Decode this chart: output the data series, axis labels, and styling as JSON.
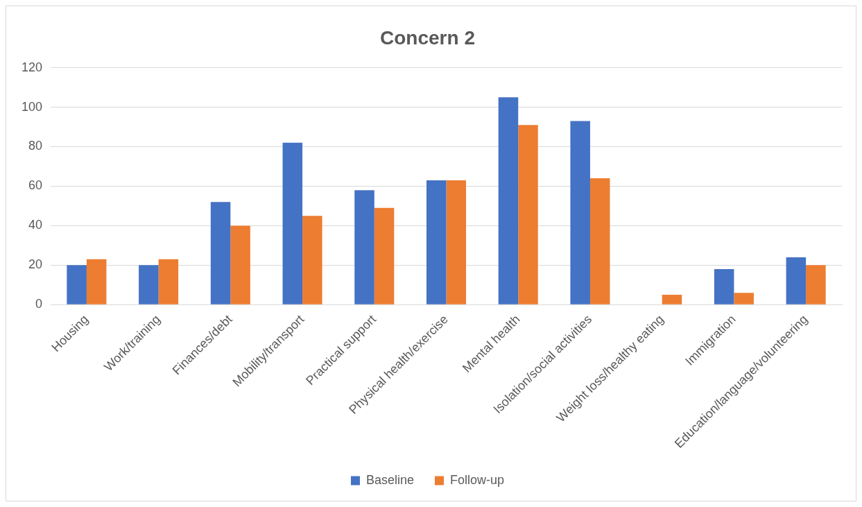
{
  "chart_data": {
    "type": "bar",
    "title": "Concern 2",
    "categories": [
      "Housing",
      "Work/training",
      "Finances/debt",
      "Mobility/transport",
      "Practical support",
      "Physical health/exercise",
      "Mental health",
      "Isolation/social activities",
      "Weight loss/healthy eating",
      "Immigration",
      "Education/language/volunteering"
    ],
    "series": [
      {
        "name": "Baseline",
        "color": "#4472c4",
        "values": [
          20,
          20,
          52,
          82,
          58,
          63,
          105,
          93,
          0,
          18,
          24
        ]
      },
      {
        "name": "Follow-up",
        "color": "#ed7d31",
        "values": [
          23,
          23,
          40,
          45,
          49,
          63,
          91,
          64,
          5,
          6,
          20
        ]
      }
    ],
    "ylim": [
      0,
      120
    ],
    "yticks": [
      0,
      20,
      40,
      60,
      80,
      100,
      120
    ],
    "grid": "y",
    "legend": "bottom"
  }
}
